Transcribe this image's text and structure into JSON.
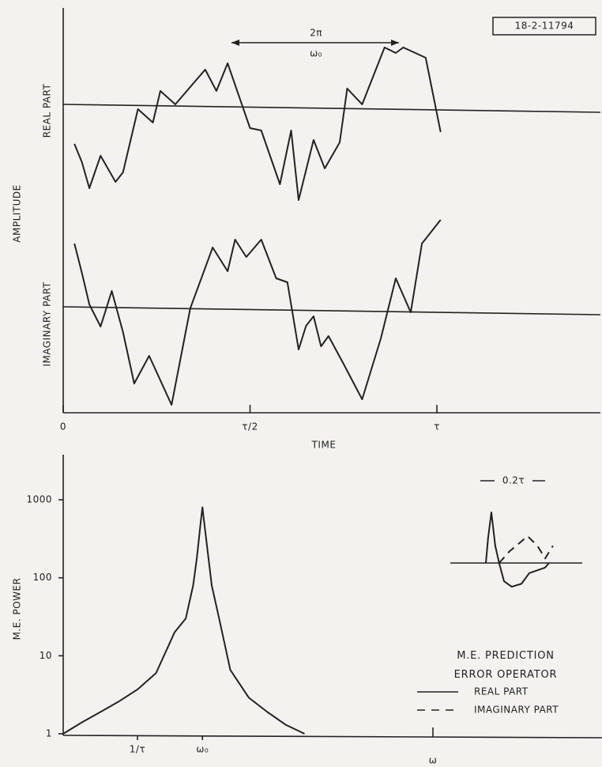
{
  "chart_data": [
    {
      "type": "line",
      "y_label": "AMPLITUDE",
      "x_label": "TIME",
      "figure_id": "18-2-11794",
      "annotation": {
        "numerator": "2π",
        "denominator": "ω₀"
      },
      "xlim": [
        0,
        1.45
      ],
      "xticks": [
        0,
        {
          "value": 0.5,
          "label": "τ/2"
        },
        {
          "value": 1,
          "label": "τ"
        }
      ],
      "series": [
        {
          "name": "REAL PART",
          "color": "#222",
          "x": [
            0.03,
            0.05,
            0.07,
            0.1,
            0.14,
            0.16,
            0.2,
            0.24,
            0.26,
            0.3,
            0.38,
            0.41,
            0.44,
            0.5,
            0.53,
            0.58,
            0.61,
            0.63,
            0.67,
            0.7,
            0.74,
            0.76,
            0.8,
            0.86,
            0.89,
            0.91,
            0.97,
            1.01
          ],
          "values": [
            -0.9,
            -1.36,
            -2.02,
            -1.2,
            -1.86,
            -1.62,
            -0.02,
            -0.36,
            0.44,
            0.1,
            0.98,
            0.44,
            1.14,
            -0.5,
            -0.56,
            -1.92,
            -0.56,
            -2.32,
            -0.8,
            -1.52,
            -0.86,
            0.5,
            0.1,
            1.54,
            1.4,
            1.54,
            1.28,
            -0.6
          ]
        },
        {
          "name": "IMAGINARY PART",
          "color": "#222",
          "x": [
            0.03,
            0.05,
            0.07,
            0.1,
            0.13,
            0.16,
            0.19,
            0.23,
            0.29,
            0.34,
            0.4,
            0.44,
            0.46,
            0.49,
            0.53,
            0.57,
            0.6,
            0.63,
            0.65,
            0.67,
            0.69,
            0.71,
            0.75,
            0.8,
            0.85,
            0.89,
            0.93,
            0.96,
            1.01
          ],
          "values": [
            1.68,
            0.94,
            0.14,
            -0.42,
            0.48,
            -0.56,
            -1.86,
            -1.16,
            -2.4,
            0.04,
            1.58,
            0.98,
            1.78,
            1.34,
            1.78,
            0.8,
            0.7,
            -1.0,
            -0.4,
            -0.16,
            -0.92,
            -0.66,
            -1.36,
            -2.26,
            -0.72,
            0.8,
            -0.06,
            1.68,
            2.28
          ]
        }
      ]
    },
    {
      "type": "line",
      "y_label": "M.E. POWER",
      "x_label": "ω",
      "log_scale": true,
      "color": "#222",
      "xlim": [
        0,
        1.45
      ],
      "xticks": [
        {
          "value": 0.2,
          "label": "1/τ"
        },
        {
          "value": 0.375,
          "label": "ω₀"
        }
      ],
      "ylim": [
        1,
        3000
      ],
      "yticks": [
        1,
        10,
        100,
        1000
      ],
      "x": [
        0,
        0.05,
        0.1,
        0.15,
        0.2,
        0.25,
        0.3,
        0.33,
        0.35,
        0.36,
        0.37,
        0.375,
        0.38,
        0.39,
        0.4,
        0.42,
        0.45,
        0.5,
        0.55,
        0.6,
        0.65
      ],
      "values": [
        1,
        1.4,
        1.9,
        2.6,
        3.7,
        6,
        20,
        30,
        80,
        180,
        500,
        800,
        500,
        200,
        80,
        30,
        6.6,
        2.9,
        1.9,
        1.3,
        1
      ]
    },
    {
      "type": "line",
      "title": "M.E. PREDICTION ERROR OPERATOR",
      "annotation": "0.2τ",
      "series": [
        {
          "name": "REAL PART",
          "color": "#222",
          "dash": false,
          "x": [
            0,
            0.007,
            0.017,
            0.029,
            0.041,
            0.056,
            0.08,
            0.11,
            0.134,
            0.183,
            0.195
          ],
          "values": [
            0,
            0.5,
            1,
            0.34,
            0,
            -0.36,
            -0.47,
            -0.41,
            -0.2,
            -0.09,
            0
          ]
        },
        {
          "name": "IMAGINARY PART",
          "color": "#222",
          "dash": true,
          "x": [
            0.041,
            0.073,
            0.129,
            0.159,
            0.183,
            0.207
          ],
          "values": [
            0,
            0.23,
            0.53,
            0.34,
            0.09,
            0.34
          ]
        }
      ]
    }
  ]
}
